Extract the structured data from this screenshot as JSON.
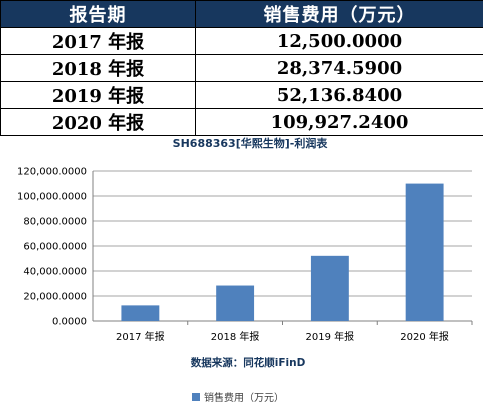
{
  "table": {
    "headers": [
      "报告期",
      "销售费用（万元）"
    ],
    "rows": [
      [
        "2017 年报",
        "12,500.0000"
      ],
      [
        "2018 年报",
        "28,374.5900"
      ],
      [
        "2019 年报",
        "52,136.8400"
      ],
      [
        "2020 年报",
        "109,927.2400"
      ]
    ]
  },
  "chart_data": {
    "type": "bar",
    "title": "SH688363[华熙生物]-利润表",
    "categories": [
      "2017 年报",
      "2018 年报",
      "2019 年报",
      "2020 年报"
    ],
    "series": [
      {
        "name": "销售费用（万元）",
        "values": [
          12500.0,
          28374.59,
          52136.84,
          109927.24
        ]
      }
    ],
    "ylim": [
      0,
      120000
    ],
    "yticks": [
      "0.0000",
      "20,000.0000",
      "40,000.0000",
      "60,000.0000",
      "80,000.0000",
      "100,000.0000",
      "120,000.0000"
    ],
    "bar_color": "#4f81bd",
    "grid": true,
    "legend": "bottom",
    "source_text": "数据来源：同花顺iFinD"
  }
}
